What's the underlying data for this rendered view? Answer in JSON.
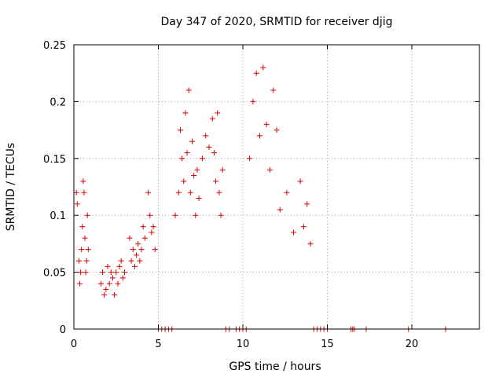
{
  "chart_data": {
    "type": "scatter",
    "title": "Day 347 of 2020, SRMTID for receiver djig",
    "xlabel": "GPS time / hours",
    "ylabel": "SRMTID / TECUs",
    "xlim": [
      0,
      24
    ],
    "ylim": [
      0,
      0.25
    ],
    "xticks": [
      0,
      5,
      10,
      15,
      20
    ],
    "yticks": [
      0,
      0.05,
      0.1,
      0.15,
      0.2,
      0.25
    ],
    "xtick_labels": [
      "0",
      "5",
      "10",
      "15",
      "20"
    ],
    "ytick_labels": [
      "0",
      "0.05",
      "0.1",
      "0.15",
      "0.2",
      "0.25"
    ],
    "grid": true,
    "marker": "+",
    "color": "#dd0000",
    "series": [
      {
        "x": [
          0.15,
          0.2,
          0.3,
          0.35,
          0.4,
          0.45,
          0.5,
          0.55,
          0.6,
          0.65,
          0.7,
          0.75,
          0.8,
          0.85,
          1.6,
          1.7,
          1.8,
          1.9,
          2.0,
          2.1,
          2.2,
          2.3,
          2.4,
          2.5,
          2.6,
          2.7,
          2.8,
          2.9,
          3.0,
          3.3,
          3.4,
          3.5,
          3.6,
          3.7,
          3.8,
          3.9,
          4.0,
          4.1,
          4.2,
          4.4,
          4.5,
          4.6,
          4.7,
          4.8,
          5.0,
          5.2,
          5.4,
          5.6,
          5.8,
          6.0,
          6.2,
          6.3,
          6.4,
          6.5,
          6.6,
          6.7,
          6.8,
          6.9,
          7.0,
          7.1,
          7.2,
          7.3,
          7.4,
          7.6,
          7.8,
          8.0,
          8.2,
          8.3,
          8.4,
          8.5,
          8.6,
          8.7,
          8.8,
          9.0,
          9.2,
          9.6,
          9.8,
          10.0,
          10.2,
          10.4,
          10.6,
          10.8,
          11.0,
          11.2,
          11.4,
          11.6,
          11.8,
          12.0,
          12.2,
          12.6,
          13.0,
          13.4,
          13.6,
          13.8,
          14.0,
          14.2,
          14.4,
          14.6,
          14.8,
          15.0,
          16.4,
          16.5,
          16.6,
          17.3,
          19.8,
          22.0
        ],
        "y": [
          0.12,
          0.11,
          0.06,
          0.04,
          0.05,
          0.07,
          0.09,
          0.13,
          0.12,
          0.08,
          0.05,
          0.06,
          0.1,
          0.07,
          0.04,
          0.05,
          0.03,
          0.035,
          0.055,
          0.04,
          0.05,
          0.045,
          0.03,
          0.05,
          0.04,
          0.055,
          0.06,
          0.045,
          0.05,
          0.08,
          0.06,
          0.07,
          0.055,
          0.065,
          0.075,
          0.06,
          0.07,
          0.09,
          0.08,
          0.12,
          0.1,
          0.085,
          0.09,
          0.07,
          0,
          0,
          0,
          0,
          0,
          0.1,
          0.12,
          0.175,
          0.15,
          0.13,
          0.19,
          0.155,
          0.21,
          0.12,
          0.165,
          0.135,
          0.1,
          0.14,
          0.115,
          0.15,
          0.17,
          0.16,
          0.185,
          0.155,
          0.13,
          0.19,
          0.12,
          0.1,
          0.14,
          0,
          0,
          0,
          0,
          0,
          0,
          0.15,
          0.2,
          0.225,
          0.17,
          0.23,
          0.18,
          0.14,
          0.21,
          0.175,
          0.105,
          0.12,
          0.085,
          0.13,
          0.09,
          0.11,
          0.075,
          0,
          0,
          0,
          0,
          0,
          0,
          0,
          0,
          0,
          0,
          0
        ]
      }
    ]
  }
}
